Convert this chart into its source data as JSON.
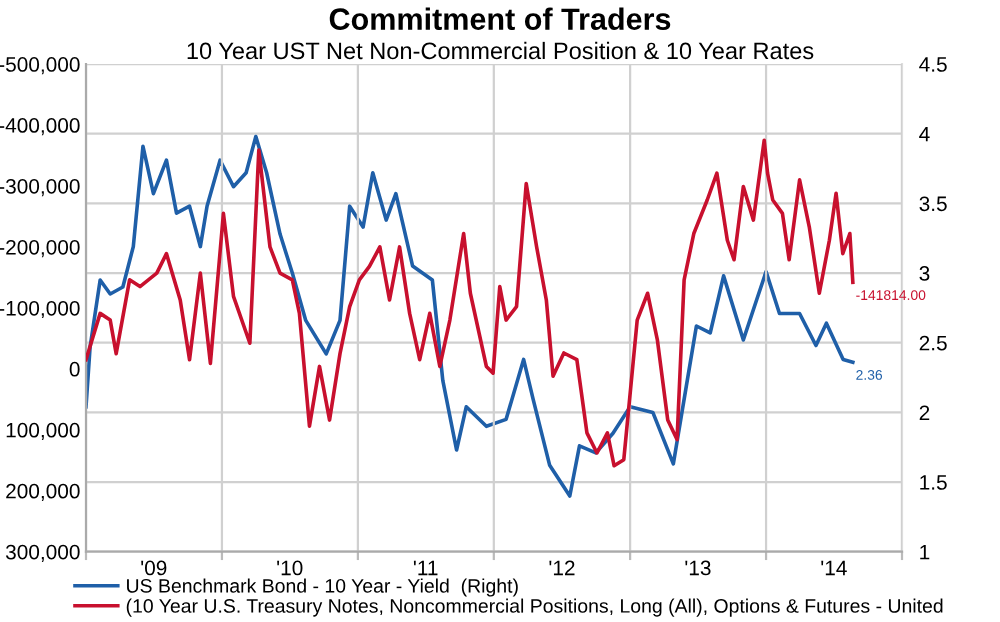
{
  "chart_data": {
    "type": "line",
    "title": "Commitment of Traders",
    "subtitle": "10 Year UST Net Non-Commercial Position & 10 Year Rates",
    "xlim": [
      "2009-01-01",
      "2015-01-01"
    ],
    "xticks": [
      {
        "value": "2009-01-01",
        "label": null
      },
      {
        "value": "2009-07-02",
        "label": "'09"
      },
      {
        "value": "2010-01-01",
        "label": null
      },
      {
        "value": "2010-07-02",
        "label": "'10"
      },
      {
        "value": "2011-01-01",
        "label": null
      },
      {
        "value": "2011-07-02",
        "label": "'11"
      },
      {
        "value": "2012-01-01",
        "label": null
      },
      {
        "value": "2012-07-02",
        "label": "'12"
      },
      {
        "value": "2013-01-01",
        "label": null
      },
      {
        "value": "2013-07-02",
        "label": "'13"
      },
      {
        "value": "2014-01-01",
        "label": null
      },
      {
        "value": "2014-07-02",
        "label": "'14"
      },
      {
        "value": "2015-01-01",
        "label": null
      }
    ],
    "ylim": [
      300000,
      -500000
    ],
    "yticks": [
      {
        "value": -500000,
        "label": "-500,000"
      },
      {
        "value": -400000,
        "label": "-400,000"
      },
      {
        "value": -300000,
        "label": "-300,000"
      },
      {
        "value": -200000,
        "label": "-200,000"
      },
      {
        "value": -100000,
        "label": "-100,000"
      },
      0,
      {
        "value": 100000,
        "label": "100,000"
      },
      {
        "value": 200000,
        "label": "200,000"
      },
      {
        "value": 300000,
        "label": "300,000"
      }
    ],
    "y2lim": [
      1,
      4.5
    ],
    "y2ticks": [
      1,
      1.5,
      2,
      2.5,
      3,
      3.5,
      4,
      4.5
    ],
    "grid": true,
    "legend": "bottom",
    "line_style": "solid",
    "series": [
      {
        "name": "US Benchmark Bond - 10 Year - Yield  (Right)",
        "color": "#1f5fa8",
        "axis": "y2",
        "x": [
          "2009-01-01",
          "2009-01-12",
          "2009-02-08",
          "2009-03-07",
          "2009-04-10",
          "2009-05-08",
          "2009-06-03",
          "2009-07-01",
          "2009-08-05",
          "2009-09-01",
          "2009-10-06",
          "2009-11-04",
          "2009-11-22",
          "2009-12-27",
          "2010-02-01",
          "2010-03-07",
          "2010-04-02",
          "2010-05-01",
          "2010-06-06",
          "2010-07-09",
          "2010-08-14",
          "2010-10-08",
          "2010-11-14",
          "2010-12-10",
          "2011-01-15",
          "2011-02-10",
          "2011-03-18",
          "2011-04-13",
          "2011-05-28",
          "2011-07-20",
          "2011-08-17",
          "2011-09-23",
          "2011-10-19",
          "2011-12-12",
          "2012-02-03",
          "2012-03-21",
          "2012-04-16",
          "2012-05-30",
          "2012-07-23",
          "2012-08-18",
          "2012-10-01",
          "2012-11-16",
          "2013-01-01",
          "2013-03-03",
          "2013-04-27",
          "2013-06-01",
          "2013-06-28",
          "2013-08-04",
          "2013-09-09",
          "2013-11-01",
          "2013-12-07",
          "2014-01-01",
          "2014-02-06",
          "2014-04-01",
          "2014-05-15",
          "2014-06-12",
          "2014-07-27",
          "2014-08-22"
        ],
        "values": [
          2.04,
          2.47,
          2.95,
          2.85,
          2.9,
          3.19,
          3.91,
          3.57,
          3.81,
          3.43,
          3.48,
          3.19,
          3.48,
          3.81,
          3.62,
          3.72,
          3.98,
          3.72,
          3.28,
          3.0,
          2.66,
          2.42,
          2.66,
          3.48,
          3.33,
          3.72,
          3.38,
          3.57,
          3.05,
          2.95,
          2.23,
          1.73,
          2.04,
          1.9,
          1.95,
          2.38,
          2.09,
          1.62,
          1.4,
          1.76,
          1.71,
          1.85,
          2.04,
          2.0,
          1.63,
          2.19,
          2.62,
          2.57,
          2.98,
          2.52,
          2.81,
          3.01,
          2.71,
          2.71,
          2.48,
          2.64,
          2.38,
          2.36
        ],
        "value_labels": [
          null,
          null,
          null,
          null,
          null,
          null,
          null,
          null,
          null,
          null,
          null,
          null,
          null,
          null,
          null,
          null,
          null,
          null,
          null,
          null,
          null,
          null,
          null,
          null,
          null,
          null,
          null,
          null,
          null,
          null,
          null,
          null,
          null,
          null,
          null,
          null,
          null,
          null,
          null,
          null,
          null,
          null,
          null,
          null,
          null,
          null,
          null,
          null,
          null,
          null,
          null,
          null,
          null,
          null,
          null,
          null,
          null,
          "2.36"
        ]
      },
      {
        "name": "(10 Year U.S. Treasury Notes, Noncommercial Positions, Long (All), Options & Futures - United",
        "color": "#c8102e",
        "x": [
          "2009-01-01",
          "2009-02-08",
          "2009-03-07",
          "2009-03-23",
          "2009-04-28",
          "2009-05-26",
          "2009-07-10",
          "2009-08-05",
          "2009-09-11",
          "2009-10-06",
          "2009-11-04",
          "2009-12-01",
          "2010-01-05",
          "2010-02-01",
          "2010-03-17",
          "2010-04-10",
          "2010-05-10",
          "2010-06-06",
          "2010-07-09",
          "2010-07-28",
          "2010-08-24",
          "2010-09-20",
          "2010-10-17",
          "2010-11-14",
          "2010-12-10",
          "2011-01-05",
          "2011-02-01",
          "2011-03-01",
          "2011-03-27",
          "2011-04-23",
          "2011-05-20",
          "2011-06-16",
          "2011-07-13",
          "2011-08-09",
          "2011-09-05",
          "2011-10-12",
          "2011-10-30",
          "2011-12-12",
          "2011-12-30",
          "2012-01-17",
          "2012-02-03",
          "2012-03-02",
          "2012-03-28",
          "2012-04-25",
          "2012-05-21",
          "2012-06-08",
          "2012-07-07",
          "2012-08-11",
          "2012-09-07",
          "2012-10-04",
          "2012-11-01",
          "2012-11-19",
          "2012-12-15",
          "2013-01-20",
          "2013-02-17",
          "2013-03-15",
          "2013-04-12",
          "2013-05-07",
          "2013-05-26",
          "2013-06-21",
          "2013-07-27",
          "2013-08-22",
          "2013-09-19",
          "2013-10-07",
          "2013-11-01",
          "2013-11-28",
          "2013-12-27",
          "2014-01-05",
          "2014-01-19",
          "2014-02-14",
          "2014-03-04",
          "2014-04-01",
          "2014-04-27",
          "2014-05-24",
          "2014-06-20",
          "2014-07-08",
          "2014-07-26",
          "2014-08-14",
          "2014-08-22"
        ],
        "values": [
          -15000,
          -91000,
          -80000,
          -25000,
          -146000,
          -135000,
          -157000,
          -189000,
          -113000,
          -15000,
          -157000,
          -9000,
          -255000,
          -119000,
          -42000,
          -359000,
          -200000,
          -157000,
          -146000,
          -91000,
          94000,
          -4000,
          84000,
          -25000,
          -102000,
          -146000,
          -168000,
          -200000,
          -113000,
          -200000,
          -91000,
          -15000,
          -91000,
          -4000,
          -80000,
          -222000,
          -124000,
          -4000,
          7000,
          -135000,
          -80000,
          -102000,
          -304000,
          -200000,
          -113000,
          12000,
          -26000,
          -15000,
          105000,
          138000,
          105000,
          159000,
          149000,
          -80000,
          -124000,
          -48000,
          84000,
          116000,
          -146000,
          -222000,
          -277000,
          -321000,
          -211000,
          -179000,
          -299000,
          -244000,
          -375000,
          -321000,
          -277000,
          -255000,
          -179000,
          -310000,
          -233000,
          -124000,
          -211000,
          -288000,
          -189000,
          -222000,
          -141814
        ],
        "value_labels": [
          null,
          null,
          null,
          null,
          null,
          null,
          null,
          null,
          null,
          null,
          null,
          null,
          null,
          null,
          null,
          null,
          null,
          null,
          null,
          null,
          null,
          null,
          null,
          null,
          null,
          null,
          null,
          null,
          null,
          null,
          null,
          null,
          null,
          null,
          null,
          null,
          null,
          null,
          null,
          null,
          null,
          null,
          null,
          null,
          null,
          null,
          null,
          null,
          null,
          null,
          null,
          null,
          null,
          null,
          null,
          null,
          null,
          null,
          null,
          null,
          null,
          null,
          null,
          null,
          null,
          null,
          null,
          null,
          null,
          null,
          null,
          null,
          null,
          null,
          null,
          null,
          null,
          null,
          "-141814.00"
        ]
      }
    ]
  }
}
